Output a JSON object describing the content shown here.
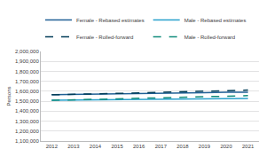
{
  "chart_data": {
    "type": "line",
    "y_label": "Persons",
    "x": [
      2012,
      2013,
      2014,
      2015,
      2016,
      2017,
      2018,
      2019,
      2020,
      2021
    ],
    "series": [
      {
        "name": "Female - Rebased estimates",
        "color": "#206095",
        "line_style": "solid",
        "values": [
          1565000,
          1567000,
          1570000,
          1573000,
          1577000,
          1580000,
          1583000,
          1586000,
          1590000,
          1590000
        ]
      },
      {
        "name": "Male - Rebased estimates",
        "color": "#27a0cc",
        "line_style": "solid",
        "values": [
          1510000,
          1512000,
          1515000,
          1518000,
          1521000,
          1524000,
          1527000,
          1529000,
          1528000,
          1527000
        ]
      },
      {
        "name": "Female - Rolled-forward",
        "color": "#003c57",
        "line_style": "dash",
        "values": [
          1565000,
          1568000,
          1572000,
          1577000,
          1583000,
          1589000,
          1594000,
          1600000,
          1608000,
          1612000
        ]
      },
      {
        "name": "Male - Rolled-forward",
        "color": "#118c7b",
        "line_style": "dash",
        "values": [
          1510000,
          1513000,
          1518000,
          1523000,
          1529000,
          1535000,
          1540000,
          1546000,
          1553000,
          1556000
        ]
      }
    ],
    "xlim": [
      2011.5,
      2021.5
    ],
    "xticks": [
      2012,
      2013,
      2014,
      2015,
      2016,
      2017,
      2018,
      2019,
      2020,
      2021
    ],
    "ylim": [
      1100000,
      2000000
    ],
    "yticks": [
      {
        "value": 1100000,
        "label": "1,100,000"
      },
      {
        "value": 1200000,
        "label": "1,200,000"
      },
      {
        "value": 1300000,
        "label": "1,300,000"
      },
      {
        "value": 1400000,
        "label": "1,400,000"
      },
      {
        "value": 1500000,
        "label": "1,500,000"
      },
      {
        "value": 1600000,
        "label": "1,600,000"
      },
      {
        "value": 1700000,
        "label": "1,700,000"
      },
      {
        "value": 1800000,
        "label": "1,800,000"
      },
      {
        "value": 1900000,
        "label": "1,900,000"
      },
      {
        "value": 2000000,
        "label": "2,000,000"
      }
    ],
    "grid": true,
    "legend": "top"
  }
}
